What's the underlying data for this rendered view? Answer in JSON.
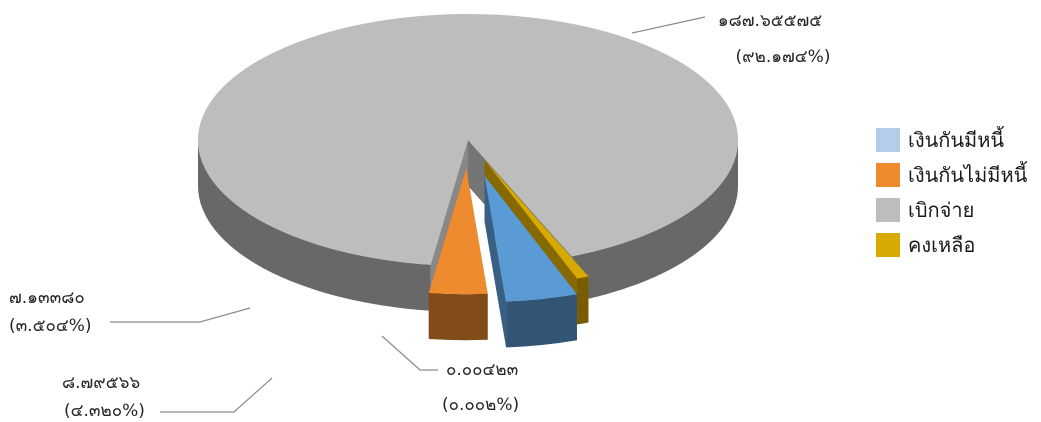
{
  "chart_data": {
    "type": "pie",
    "title": "",
    "legend_position": "right",
    "slices": [
      {
        "name": "เงินกันมีหนี้",
        "value": "๘.๗๙๕๖๖",
        "percent": "(๔.๓๒๐%)",
        "value_num": 8.79566,
        "percent_num": 4.32,
        "color": "#5b9bd5",
        "legend_color": "#b5cde9"
      },
      {
        "name": "เงินกันไม่มีหนี้",
        "value": "๗.๑๓๓๘๐",
        "percent": "(๓.๕๐๔%)",
        "value_num": 7.1338,
        "percent_num": 3.504,
        "color": "#ed8b2e",
        "legend_color": "#ed8b2e"
      },
      {
        "name": "เบิกจ่าย",
        "value": "๑๘๗.๖๕๕๗๕",
        "percent": "(๙๒.๑๗๔%)",
        "value_num": 187.65575,
        "percent_num": 92.174,
        "color": "#bdbdbd",
        "legend_color": "#bdbdbd"
      },
      {
        "name": "คงเหลือ",
        "value": "๐.๐๐๔๒๓",
        "percent": "(๐.๐๐๒%)",
        "value_num": 0.00423,
        "percent_num": 0.002,
        "color": "#d8a900",
        "legend_color": "#d8a900"
      }
    ]
  }
}
